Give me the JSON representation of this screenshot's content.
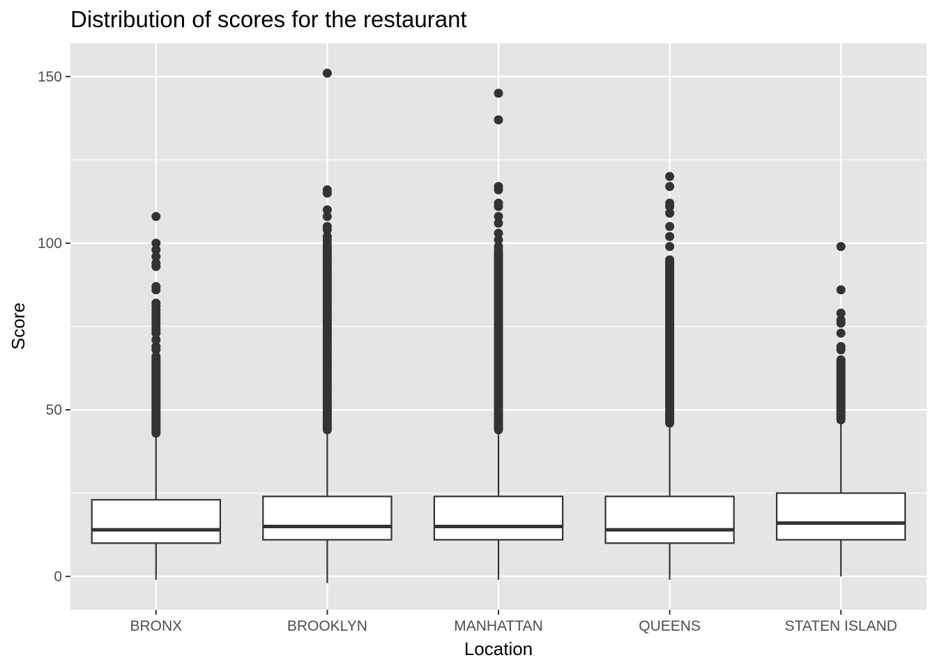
{
  "chart_data": {
    "type": "boxplot",
    "title": "Distribution of scores for the restaurant",
    "xlabel": "Location",
    "ylabel": "Score",
    "ylim": [
      -10,
      160
    ],
    "y_ticks": [
      0,
      50,
      100,
      150
    ],
    "y_tick_labels": [
      "0",
      "50",
      "100",
      "150"
    ],
    "grid": true,
    "categories": [
      "BRONX",
      "BROOKLYN",
      "MANHATTAN",
      "QUEENS",
      "STATEN ISLAND"
    ],
    "boxes": [
      {
        "category": "BRONX",
        "whisker_low": -1,
        "q1": 10,
        "median": 14,
        "q3": 23,
        "whisker_high": 42,
        "outliers_dense_from": 43,
        "outliers_dense_to": 66,
        "outliers": [
          68,
          69,
          71,
          73,
          74,
          75,
          76,
          77,
          78,
          79,
          80,
          81,
          82,
          86,
          87,
          93,
          94,
          96,
          98,
          100,
          108
        ]
      },
      {
        "category": "BROOKLYN",
        "whisker_low": -2,
        "q1": 11,
        "median": 15,
        "q3": 24,
        "whisker_high": 43,
        "outliers_dense_from": 44,
        "outliers_dense_to": 99,
        "outliers": [
          100,
          101,
          102,
          104,
          105,
          108,
          110,
          115,
          116,
          151
        ]
      },
      {
        "category": "MANHATTAN",
        "whisker_low": -1,
        "q1": 11,
        "median": 15,
        "q3": 24,
        "whisker_high": 43,
        "outliers_dense_from": 44,
        "outliers_dense_to": 97,
        "outliers": [
          98,
          99,
          101,
          103,
          106,
          108,
          111,
          112,
          116,
          117,
          137,
          145
        ]
      },
      {
        "category": "QUEENS",
        "whisker_low": -1,
        "q1": 10,
        "median": 14,
        "q3": 24,
        "whisker_high": 45,
        "outliers_dense_from": 46,
        "outliers_dense_to": 95,
        "outliers": [
          99,
          102,
          105,
          109,
          111,
          112,
          117,
          120
        ]
      },
      {
        "category": "STATEN ISLAND",
        "whisker_low": 0,
        "q1": 11,
        "median": 16,
        "q3": 25,
        "whisker_high": 46,
        "outliers_dense_from": 47,
        "outliers_dense_to": 65,
        "outliers": [
          68,
          69,
          73,
          76,
          77,
          79,
          86,
          99
        ]
      }
    ],
    "colors": {
      "panel_background": "#e5e5e5",
      "grid": "#ffffff",
      "box_fill": "#ffffff",
      "box_line": "#333333",
      "points": "#333333"
    }
  }
}
